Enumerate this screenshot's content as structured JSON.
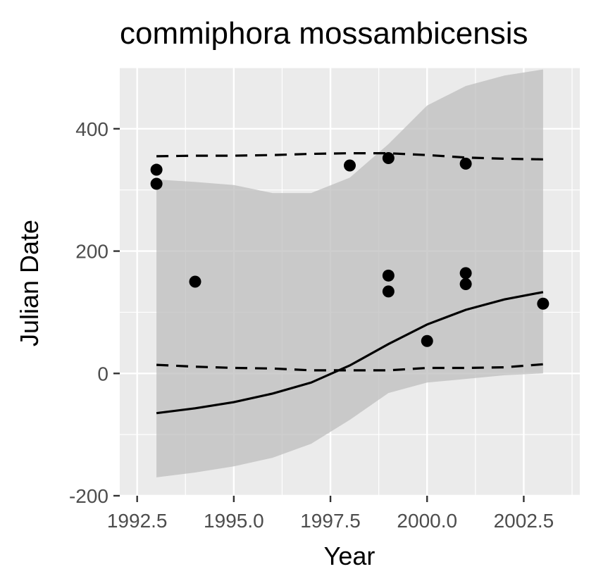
{
  "chart_data": {
    "type": "scatter",
    "title": "commiphora mossambicensis",
    "xlabel": "Year",
    "ylabel": "Julian Date",
    "xlim": [
      1992.05,
      2003.95
    ],
    "ylim": [
      -200,
      500
    ],
    "x_ticks": [
      1992.5,
      1995.0,
      1997.5,
      2000.0,
      2002.5
    ],
    "x_tick_labels": [
      "1992.5",
      "1995.0",
      "1997.5",
      "2000.0",
      "2002.5"
    ],
    "y_ticks": [
      -200,
      0,
      200,
      400
    ],
    "y_tick_labels": [
      "-200",
      "0",
      "200",
      "400"
    ],
    "grid": true,
    "legend": "none",
    "colors": {
      "panel": "#ebebeb",
      "grid": "#ffffff",
      "ribbon": "#bebebe",
      "points": "#000000",
      "lines": "#000000"
    },
    "points": [
      {
        "x": 1993,
        "y": 333
      },
      {
        "x": 1993,
        "y": 310
      },
      {
        "x": 1994,
        "y": 150
      },
      {
        "x": 1998,
        "y": 340
      },
      {
        "x": 1999,
        "y": 352
      },
      {
        "x": 1999,
        "y": 160
      },
      {
        "x": 1999,
        "y": 134
      },
      {
        "x": 2000,
        "y": 53
      },
      {
        "x": 2001,
        "y": 343
      },
      {
        "x": 2001,
        "y": 164
      },
      {
        "x": 2001,
        "y": 146
      },
      {
        "x": 2003,
        "y": 114
      }
    ],
    "ribbon": {
      "x": [
        1993,
        1994,
        1995,
        1996,
        1997,
        1998,
        1999,
        2000,
        2001,
        2002,
        2003
      ],
      "upper": [
        317,
        313,
        308,
        295,
        295,
        320,
        375,
        438,
        470,
        487,
        497
      ],
      "lower": [
        -170,
        -162,
        -152,
        -138,
        -115,
        -76,
        -32,
        -15,
        -9,
        -3,
        0
      ]
    },
    "fit_line": {
      "x": [
        1993,
        1994,
        1995,
        1996,
        1997,
        1998,
        1999,
        2000,
        2001,
        2002,
        2003
      ],
      "y": [
        -65,
        -57,
        -47,
        -33,
        -15,
        13,
        48,
        80,
        104,
        121,
        133
      ]
    },
    "upper_dashed": {
      "x": [
        1993,
        1994,
        1995,
        1996,
        1997,
        1998,
        1999,
        2000,
        2001,
        2002,
        2003
      ],
      "y": [
        355,
        356,
        356,
        357,
        359,
        360,
        360,
        357,
        353,
        351,
        350
      ]
    },
    "lower_dashed": {
      "x": [
        1993,
        1994,
        1995,
        1996,
        1997,
        1998,
        1999,
        2000,
        2001,
        2002,
        2003
      ],
      "y": [
        14,
        11,
        9,
        8,
        5,
        5,
        5,
        9,
        9,
        10,
        15
      ]
    }
  }
}
